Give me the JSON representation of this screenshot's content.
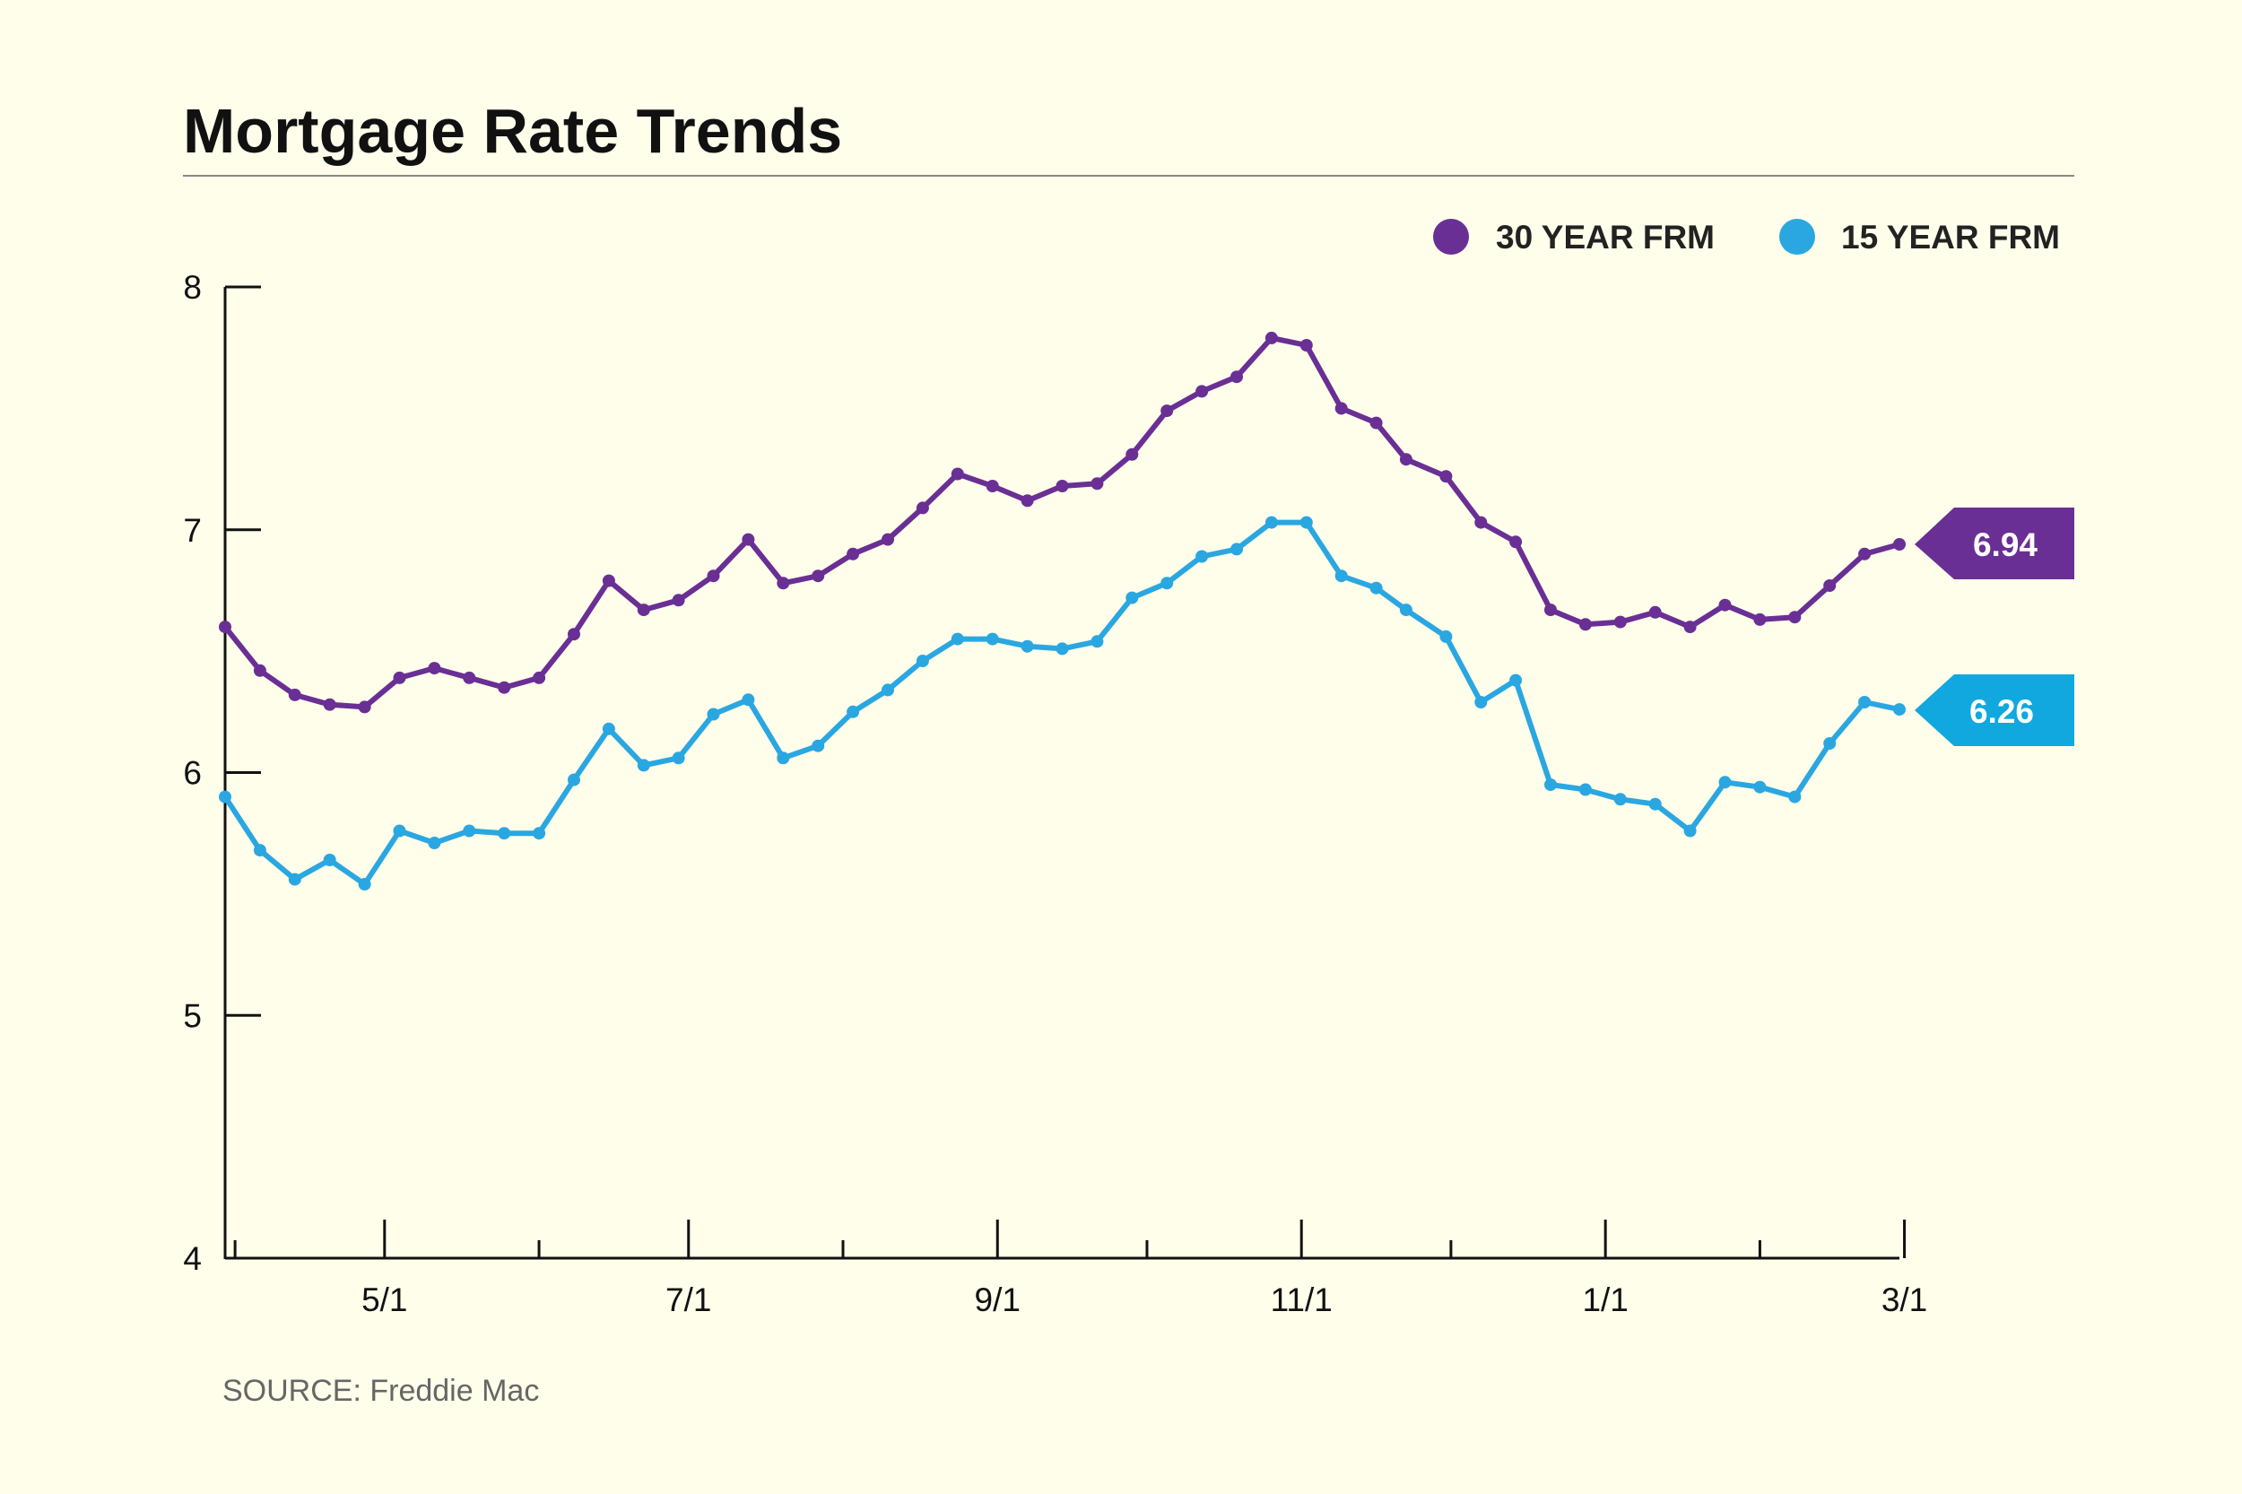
{
  "title": "Mortgage Rate Trends",
  "source": "SOURCE: Freddie Mac",
  "colors": {
    "background": "#FEFEEB",
    "series_30": "#6A2F94",
    "series_15": "#2AA7E1",
    "callout_15": "#10A8DF"
  },
  "legend": [
    {
      "label": "30 YEAR FRM",
      "color": "#6A2F94"
    },
    {
      "label": "15 YEAR FRM",
      "color": "#2AA7E1"
    }
  ],
  "callouts": [
    {
      "value": "6.94",
      "color": "#6A2F94"
    },
    {
      "value": "6.26",
      "color": "#10A8DF"
    }
  ],
  "chart_data": {
    "type": "line",
    "x": [
      "2023-03-30",
      "2023-04-06",
      "2023-04-13",
      "2023-04-20",
      "2023-04-27",
      "2023-05-04",
      "2023-05-11",
      "2023-05-18",
      "2023-05-25",
      "2023-06-01",
      "2023-06-08",
      "2023-06-15",
      "2023-06-22",
      "2023-06-29",
      "2023-07-06",
      "2023-07-13",
      "2023-07-20",
      "2023-07-27",
      "2023-08-03",
      "2023-08-10",
      "2023-08-17",
      "2023-08-24",
      "2023-08-31",
      "2023-09-07",
      "2023-09-14",
      "2023-09-21",
      "2023-09-28",
      "2023-10-05",
      "2023-10-12",
      "2023-10-19",
      "2023-10-26",
      "2023-11-02",
      "2023-11-09",
      "2023-11-16",
      "2023-11-22",
      "2023-11-30",
      "2023-12-07",
      "2023-12-14",
      "2023-12-21",
      "2023-12-28",
      "2024-01-04",
      "2024-01-11",
      "2024-01-18",
      "2024-01-25",
      "2024-02-01",
      "2024-02-08",
      "2024-02-15",
      "2024-02-22",
      "2024-02-29"
    ],
    "series": [
      {
        "name": "30 YEAR FRM",
        "values": [
          6.6,
          6.42,
          6.32,
          6.28,
          6.27,
          6.39,
          6.43,
          6.39,
          6.35,
          6.39,
          6.57,
          6.79,
          6.67,
          6.71,
          6.81,
          6.96,
          6.78,
          6.81,
          6.9,
          6.96,
          7.09,
          7.23,
          7.18,
          7.12,
          7.18,
          7.19,
          7.31,
          7.49,
          7.57,
          7.63,
          7.79,
          7.76,
          7.5,
          7.44,
          7.29,
          7.22,
          7.03,
          6.95,
          6.67,
          6.61,
          6.62,
          6.66,
          6.6,
          6.69,
          6.63,
          6.64,
          6.77,
          6.9,
          6.94
        ]
      },
      {
        "name": "15 YEAR FRM",
        "values": [
          5.9,
          5.68,
          5.56,
          5.64,
          5.54,
          5.76,
          5.71,
          5.76,
          5.75,
          5.75,
          5.97,
          6.18,
          6.03,
          6.06,
          6.24,
          6.3,
          6.06,
          6.11,
          6.25,
          6.34,
          6.46,
          6.55,
          6.55,
          6.52,
          6.51,
          6.54,
          6.72,
          6.78,
          6.89,
          6.92,
          7.03,
          7.03,
          6.81,
          6.76,
          6.67,
          6.56,
          6.29,
          6.38,
          5.95,
          5.93,
          5.89,
          5.87,
          5.76,
          5.96,
          5.94,
          5.9,
          6.12,
          6.29,
          6.26
        ]
      }
    ],
    "x_tick_labels": [
      "5/1",
      "7/1",
      "9/1",
      "11/1",
      "1/1",
      "3/1"
    ],
    "y_ticks": [
      "4",
      "5",
      "6",
      "7",
      "8"
    ],
    "ylim": [
      4,
      8
    ],
    "grid": false,
    "legend_position": "top-right"
  }
}
